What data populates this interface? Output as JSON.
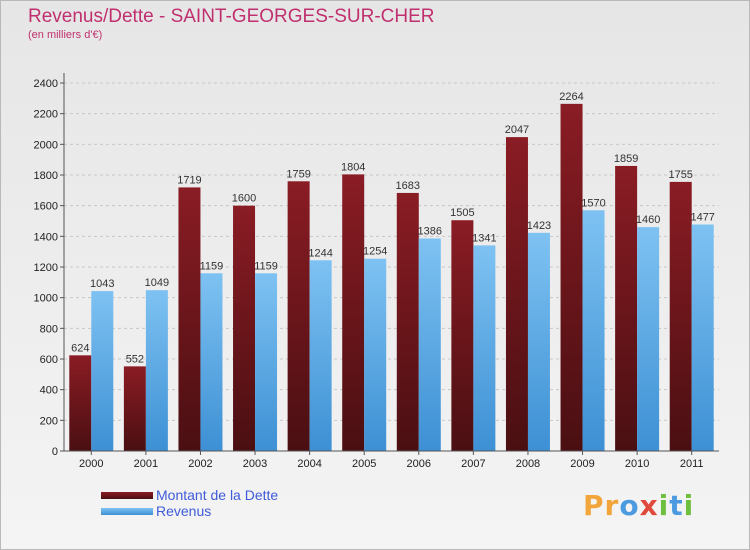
{
  "title": "Revenus/Dette - SAINT-GEORGES-SUR-CHER",
  "subtitle": "(en milliers d'€)",
  "colors": {
    "debt_top": "#8a1c24",
    "debt_bottom": "#4a0f12",
    "revenue_top": "#7ec2f2",
    "revenue_bottom": "#3d90d4",
    "title": "#c0306f",
    "legend_text": "#3f5bd8"
  },
  "legend": {
    "debt_label": "Montant de la Dette",
    "revenue_label": "Revenus"
  },
  "logo": {
    "text": "Proxiti",
    "letters": [
      {
        "ch": "P",
        "color": "#f2a53b"
      },
      {
        "ch": "r",
        "color": "#f2a53b"
      },
      {
        "ch": "o",
        "color": "#4c9be0"
      },
      {
        "ch": "x",
        "color": "#e04a3c"
      },
      {
        "ch": "i",
        "color": "#6fbf3f"
      },
      {
        "ch": "t",
        "color": "#4c9be0"
      },
      {
        "ch": "i",
        "color": "#6fbf3f"
      }
    ]
  },
  "chart_data": {
    "type": "bar",
    "title": "Revenus/Dette - SAINT-GEORGES-SUR-CHER",
    "subtitle": "(en milliers d'€)",
    "categories": [
      "2000",
      "2001",
      "2002",
      "2003",
      "2004",
      "2005",
      "2006",
      "2007",
      "2008",
      "2009",
      "2010",
      "2011"
    ],
    "series": [
      {
        "name": "Montant de la Dette",
        "values": [
          624,
          552,
          1719,
          1600,
          1759,
          1804,
          1683,
          1505,
          2047,
          2264,
          1859,
          1755
        ]
      },
      {
        "name": "Revenus",
        "values": [
          1043,
          1049,
          1159,
          1159,
          1244,
          1254,
          1386,
          1341,
          1423,
          1570,
          1460,
          1477
        ]
      }
    ],
    "ylim": [
      0,
      2400
    ],
    "yticks": [
      0,
      200,
      400,
      600,
      800,
      1000,
      1200,
      1400,
      1600,
      1800,
      2000,
      2200,
      2400
    ],
    "grid": true,
    "legend_position": "bottom-left"
  }
}
